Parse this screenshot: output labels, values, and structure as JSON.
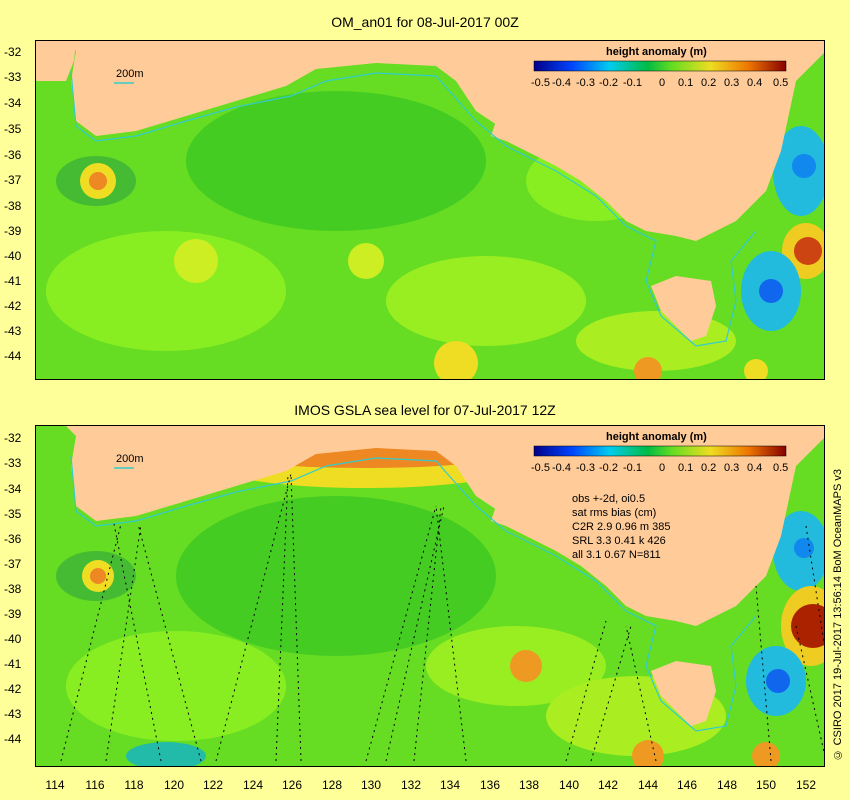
{
  "map1": {
    "title": "OM_an01 for 08-Jul-2017 00Z",
    "scale_label": "200m",
    "colorbar_title": "height anomaly (m)",
    "colorbar_ticks": [
      "-0.5",
      "-0.4",
      "-0.3",
      "-0.2",
      "-0.1",
      "0",
      "0.1",
      "0.2",
      "0.3",
      "0.4",
      "0.5"
    ]
  },
  "map2": {
    "title": "IMOS GSLA sea level  for 07-Jul-2017 12Z",
    "scale_label": "200m",
    "colorbar_title": "height anomaly (m)",
    "colorbar_ticks": [
      "-0.5",
      "-0.4",
      "-0.3",
      "-0.2",
      "-0.1",
      "0",
      "0.1",
      "0.2",
      "0.3",
      "0.4",
      "0.5"
    ],
    "stats": [
      "obs +-2d, oi0.5",
      "sat rms bias (cm)",
      "C2R   2.9 0.96 m 385",
      "SRL    3.3 0.41 k 426",
      "all   3.1 0.67 N=811"
    ]
  },
  "latitude_labels": [
    "-32",
    "-33",
    "-34",
    "-35",
    "-36",
    "-37",
    "-38",
    "-39",
    "-40",
    "-41",
    "-42",
    "-43",
    "-44"
  ],
  "longitude_labels": [
    "114",
    "116",
    "118",
    "120",
    "122",
    "124",
    "126",
    "128",
    "130",
    "132",
    "134",
    "136",
    "138",
    "140",
    "142",
    "144",
    "146",
    "148",
    "150",
    "152"
  ],
  "credit": "© CSIRO 2017  19-Jul-2017 13:56:14 BoM OceanMAPS v3",
  "colors": {
    "land": "#ffcc99",
    "ocean_base": "#66dd22",
    "page_background": "#ffff99",
    "isobath": "#33cccc"
  }
}
